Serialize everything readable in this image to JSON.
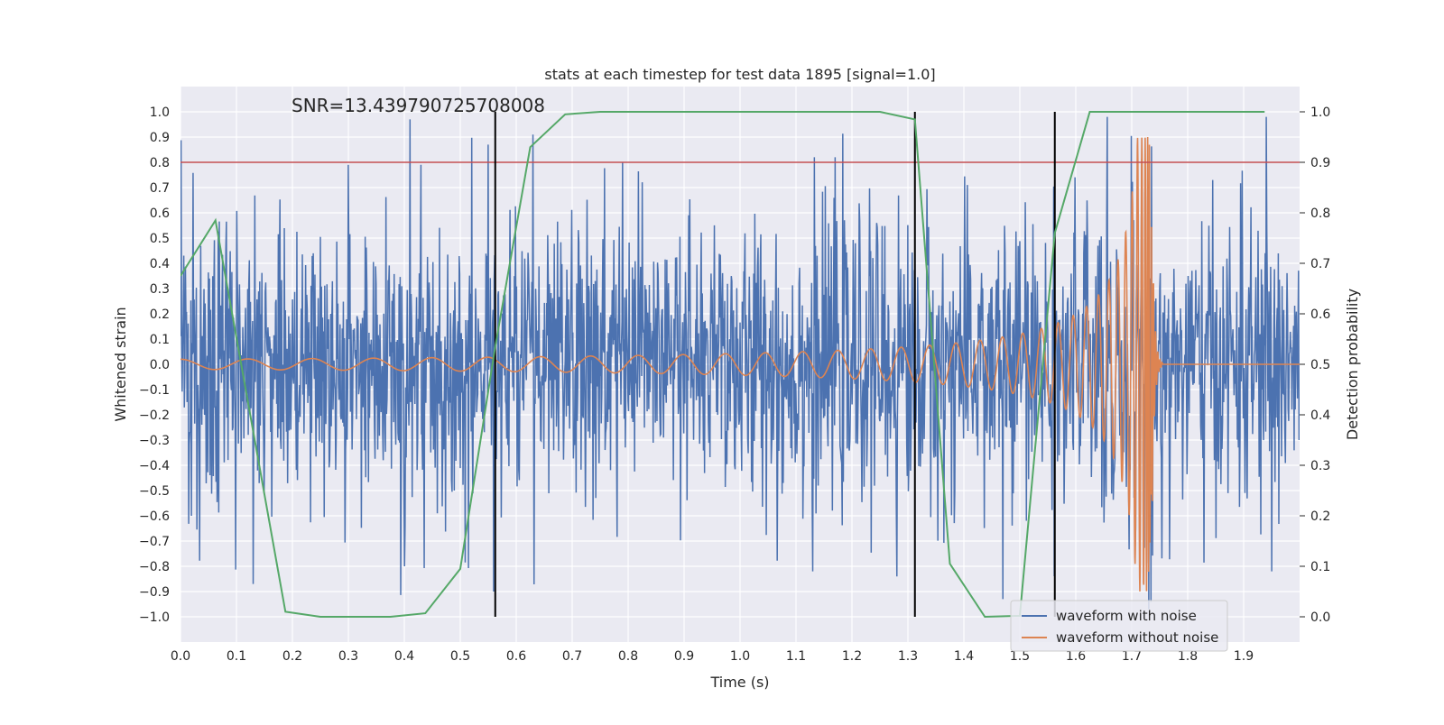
{
  "chart_data": {
    "type": "line",
    "title": "stats at each timestep for test data 1895 [signal=1.0]",
    "annotation": "SNR=13.439790725708008",
    "xlabel": "Time (s)",
    "ylabel": "Whitened strain",
    "y2label": "Detection probability",
    "xlim": [
      0.0,
      2.0
    ],
    "ylim": [
      -1.1,
      1.1
    ],
    "y2lim": [
      -0.05,
      1.05
    ],
    "xticks": [
      "0.0",
      "0.1",
      "0.2",
      "0.3",
      "0.4",
      "0.5",
      "0.6",
      "0.7",
      "0.8",
      "0.9",
      "1.0",
      "1.1",
      "1.2",
      "1.3",
      "1.4",
      "1.5",
      "1.6",
      "1.7",
      "1.8",
      "1.9"
    ],
    "yticks": [
      "1.0",
      "0.9",
      "0.8",
      "0.7",
      "0.6",
      "0.5",
      "0.4",
      "0.3",
      "0.2",
      "0.1",
      "0.0",
      "−0.1",
      "−0.2",
      "−0.3",
      "−0.4",
      "−0.5",
      "−0.6",
      "−0.7",
      "−0.8",
      "−0.9",
      "−1.0"
    ],
    "y2ticks": [
      "1.0",
      "0.9",
      "0.8",
      "0.7",
      "0.6",
      "0.5",
      "0.4",
      "0.3",
      "0.2",
      "0.1",
      "0.0"
    ],
    "grid": true,
    "legend": {
      "placement": "lower-right",
      "entries": [
        "waveform with noise",
        "waveform without noise"
      ]
    },
    "threshold": {
      "axis": "y2",
      "value": 0.9,
      "color": "#c44e52"
    },
    "vertical_lines": {
      "x": [
        0.5625,
        1.3125,
        1.5625
      ],
      "color": "#000000"
    },
    "series": [
      {
        "name": "waveform with noise",
        "axis": "y",
        "color": "#4c72b0",
        "noise_std": 0.28,
        "peak_samples": [
          {
            "x": 0.41,
            "y": 0.97
          },
          {
            "x": 0.3,
            "y": 0.79
          },
          {
            "x": 0.43,
            "y": 0.79
          },
          {
            "x": 0.55,
            "y": 0.87
          },
          {
            "x": 0.63,
            "y": 0.91
          },
          {
            "x": 0.79,
            "y": 0.8
          },
          {
            "x": 1.17,
            "y": 0.82
          },
          {
            "x": 1.73,
            "y": 0.9
          },
          {
            "x": 1.94,
            "y": 0.98
          },
          {
            "x": 0.13,
            "y": -0.87
          },
          {
            "x": 0.4,
            "y": -0.8
          },
          {
            "x": 0.56,
            "y": -0.9
          },
          {
            "x": 1.13,
            "y": -0.82
          },
          {
            "x": 1.47,
            "y": -0.93
          },
          {
            "x": 1.73,
            "y": -0.97
          },
          {
            "x": 1.95,
            "y": -0.82
          },
          {
            "x": 1.28,
            "y": -0.84
          }
        ]
      },
      {
        "name": "waveform without noise",
        "axis": "y",
        "color": "#dd8452",
        "model": "chirp",
        "t_merger": 1.735,
        "amplitude_start": 0.02,
        "amplitude_peak": 0.9,
        "frequency_start_hz": 10
      },
      {
        "axis": "y2",
        "color": "#55a868",
        "x": [
          0.0,
          0.0625,
          0.1875,
          0.25,
          0.375,
          0.4375,
          0.5,
          0.5625,
          0.625,
          0.6875,
          0.75,
          1.25,
          1.3125,
          1.375,
          1.4375,
          1.5,
          1.5625,
          1.625,
          1.9375
        ],
        "y": [
          0.675,
          0.785,
          0.01,
          0.0,
          0.0,
          0.007,
          0.095,
          0.535,
          0.93,
          0.995,
          1.0,
          1.0,
          0.985,
          0.105,
          0.0,
          0.002,
          0.76,
          1.0,
          1.0
        ]
      }
    ]
  }
}
